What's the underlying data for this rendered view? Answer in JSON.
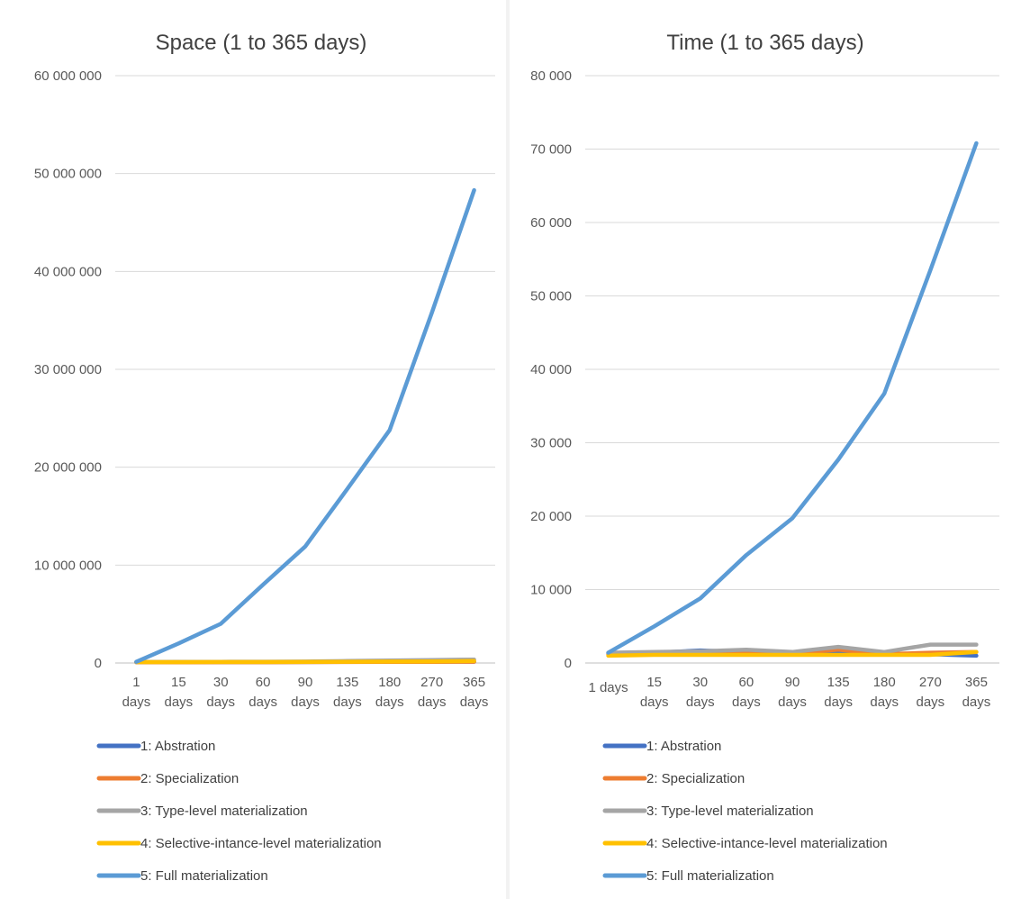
{
  "chart_data": [
    {
      "type": "line",
      "title": "Space (1 to 365 days)",
      "xlabel": "",
      "ylabel": "",
      "categories": [
        [
          "1",
          "days"
        ],
        [
          "15",
          "days"
        ],
        [
          "30",
          "days"
        ],
        [
          "60",
          "days"
        ],
        [
          "90",
          "days"
        ],
        [
          "135",
          "days"
        ],
        [
          "180",
          "days"
        ],
        [
          "270",
          "days"
        ],
        [
          "365",
          "days"
        ]
      ],
      "yticks": [
        "0",
        "10 000 000",
        "20 000 000",
        "30 000 000",
        "40 000 000",
        "50 000 000",
        "60 000 000"
      ],
      "ylim": [
        0,
        60000000
      ],
      "grid": true,
      "legend_position": "bottom",
      "series": [
        {
          "name": "1: Abstration",
          "color": "#4472C4",
          "values": [
            80000,
            85000,
            90000,
            95000,
            100000,
            110000,
            120000,
            130000,
            140000
          ]
        },
        {
          "name": "2: Specialization",
          "color": "#ED7D31",
          "values": [
            70000,
            75000,
            80000,
            85000,
            90000,
            100000,
            110000,
            120000,
            130000
          ]
        },
        {
          "name": "3: Type-level materialization",
          "color": "#A5A5A5",
          "values": [
            100000,
            110000,
            120000,
            130000,
            150000,
            200000,
            250000,
            300000,
            350000
          ]
        },
        {
          "name": "4: Selective-intance-level materialization",
          "color": "#FFC000",
          "values": [
            90000,
            95000,
            100000,
            105000,
            110000,
            130000,
            150000,
            170000,
            200000
          ]
        },
        {
          "name": "5: Full materialization",
          "color": "#5B9BD5",
          "values": [
            120000,
            2000000,
            4000000,
            8000000,
            11900000,
            17800000,
            23800000,
            35800000,
            48300000
          ]
        }
      ]
    },
    {
      "type": "line",
      "title": "Time (1 to 365 days)",
      "xlabel": "",
      "ylabel": "",
      "categories": [
        [
          "1 days"
        ],
        [
          "15",
          "days"
        ],
        [
          "30",
          "days"
        ],
        [
          "60",
          "days"
        ],
        [
          "90",
          "days"
        ],
        [
          "135",
          "days"
        ],
        [
          "180",
          "days"
        ],
        [
          "270",
          "days"
        ],
        [
          "365",
          "days"
        ]
      ],
      "yticks": [
        "0",
        "10 000",
        "20 000",
        "30 000",
        "40 000",
        "50 000",
        "60 000",
        "70 000",
        "80 000"
      ],
      "ylim": [
        0,
        80000
      ],
      "grid": true,
      "legend_position": "bottom",
      "series": [
        {
          "name": "1: Abstration",
          "color": "#4472C4",
          "values": [
            1300,
            1400,
            1700,
            1500,
            1400,
            1500,
            1300,
            1200,
            1000
          ]
        },
        {
          "name": "2: Specialization",
          "color": "#ED7D31",
          "values": [
            1200,
            1300,
            1300,
            1300,
            1300,
            1800,
            1200,
            1400,
            1500
          ]
        },
        {
          "name": "3: Type-level materialization",
          "color": "#A5A5A5",
          "values": [
            1400,
            1500,
            1600,
            1800,
            1500,
            2200,
            1500,
            2500,
            2500
          ]
        },
        {
          "name": "4: Selective-intance-level materialization",
          "color": "#FFC000",
          "values": [
            1000,
            1100,
            1100,
            1100,
            1100,
            1100,
            1100,
            1100,
            1500
          ]
        },
        {
          "name": "5: Full materialization",
          "color": "#5B9BD5",
          "values": [
            1400,
            5000,
            8800,
            14700,
            19700,
            27700,
            36700,
            53500,
            70800
          ]
        }
      ]
    }
  ]
}
